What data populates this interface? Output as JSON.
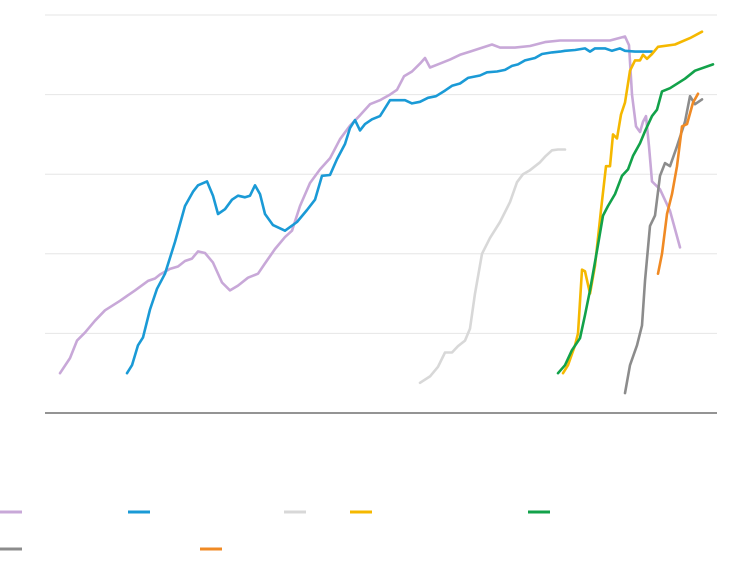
{
  "chart_data": {
    "type": "line",
    "xlim": [
      0,
      672
    ],
    "ylim": [
      0,
      5
    ],
    "yticks": [
      0,
      1,
      2,
      3,
      4,
      5
    ],
    "grid": true,
    "series": [
      {
        "color": "#c8a8d8",
        "x": [
          15,
          25,
          32,
          40,
          50,
          60,
          75,
          90,
          103,
          110,
          115,
          125,
          133,
          140,
          147,
          153,
          160,
          168,
          177,
          185,
          193,
          203,
          213,
          220,
          230,
          240,
          247,
          255,
          265,
          275,
          285,
          295,
          305,
          315,
          325,
          335,
          345,
          352,
          359,
          367,
          375,
          380,
          385,
          395,
          405,
          415,
          425,
          435,
          447,
          455,
          470,
          485,
          500,
          515,
          530,
          545,
          565,
          580,
          584,
          587,
          591,
          595,
          598,
          601,
          604,
          607,
          615,
          625,
          635
        ],
        "values": [
          0.5,
          0.69,
          0.91,
          1.01,
          1.16,
          1.29,
          1.41,
          1.54,
          1.66,
          1.69,
          1.74,
          1.81,
          1.84,
          1.91,
          1.94,
          2.03,
          2.01,
          1.89,
          1.64,
          1.54,
          1.6,
          1.7,
          1.75,
          1.88,
          2.06,
          2.21,
          2.29,
          2.6,
          2.89,
          3.06,
          3.2,
          3.44,
          3.61,
          3.74,
          3.88,
          3.93,
          4.0,
          4.06,
          4.23,
          4.29,
          4.39,
          4.46,
          4.34,
          4.39,
          4.44,
          4.5,
          4.54,
          4.58,
          4.63,
          4.59,
          4.59,
          4.61,
          4.66,
          4.68,
          4.68,
          4.68,
          4.68,
          4.73,
          4.62,
          4.0,
          3.6,
          3.53,
          3.66,
          3.73,
          3.35,
          2.91,
          2.81,
          2.54,
          2.08
        ]
      },
      {
        "color": "#1a9ad6",
        "x": [
          82,
          87,
          93,
          98,
          105,
          112,
          120,
          130,
          140,
          148,
          153,
          162,
          168,
          173,
          180,
          187,
          193,
          200,
          205,
          210,
          215,
          220,
          228,
          240,
          252,
          262,
          270,
          277,
          285,
          292,
          300,
          305,
          310,
          315,
          320,
          327,
          335,
          345,
          360,
          367,
          375,
          383,
          391,
          400,
          407,
          415,
          423,
          435,
          442,
          452,
          460,
          467,
          473,
          480,
          490,
          497,
          507,
          515,
          520,
          530,
          540,
          545,
          550,
          560,
          567,
          575,
          580,
          590,
          607
        ],
        "values": [
          0.5,
          0.6,
          0.85,
          0.95,
          1.3,
          1.56,
          1.75,
          2.15,
          2.6,
          2.78,
          2.86,
          2.91,
          2.73,
          2.5,
          2.56,
          2.68,
          2.73,
          2.71,
          2.73,
          2.86,
          2.75,
          2.5,
          2.36,
          2.29,
          2.4,
          2.55,
          2.68,
          2.98,
          2.99,
          3.19,
          3.38,
          3.58,
          3.68,
          3.55,
          3.63,
          3.69,
          3.73,
          3.93,
          3.93,
          3.89,
          3.91,
          3.96,
          3.98,
          4.05,
          4.11,
          4.14,
          4.21,
          4.24,
          4.28,
          4.29,
          4.31,
          4.36,
          4.38,
          4.43,
          4.46,
          4.51,
          4.53,
          4.54,
          4.55,
          4.56,
          4.58,
          4.54,
          4.58,
          4.58,
          4.55,
          4.58,
          4.55,
          4.54,
          4.54
        ]
      },
      {
        "color": "#d8d8d8",
        "x": [
          375,
          385,
          393,
          400,
          407,
          413,
          420,
          425,
          430,
          437,
          445,
          455,
          465,
          472,
          478,
          485,
          495,
          500,
          507,
          513,
          520
        ],
        "values": [
          0.38,
          0.46,
          0.58,
          0.76,
          0.76,
          0.84,
          0.91,
          1.06,
          1.5,
          2.0,
          2.2,
          2.4,
          2.65,
          2.9,
          3.0,
          3.05,
          3.15,
          3.22,
          3.3,
          3.31,
          3.31
        ]
      },
      {
        "color": "#f5b800",
        "x": [
          518,
          523,
          530,
          533,
          537,
          540,
          545,
          550,
          556,
          561,
          565,
          568,
          572,
          576,
          580,
          585,
          590,
          595,
          598,
          602,
          607,
          613,
          630,
          645,
          657
        ],
        "values": [
          0.5,
          0.6,
          0.85,
          1.0,
          1.8,
          1.78,
          1.5,
          1.85,
          2.55,
          3.1,
          3.1,
          3.5,
          3.45,
          3.75,
          3.9,
          4.3,
          4.43,
          4.43,
          4.5,
          4.45,
          4.51,
          4.6,
          4.63,
          4.71,
          4.79
        ]
      },
      {
        "color": "#12a24a",
        "x": [
          513,
          520,
          527,
          535,
          540,
          545,
          552,
          558,
          563,
          570,
          577,
          583,
          588,
          595,
          600,
          607,
          612,
          617,
          625,
          640,
          650,
          668
        ],
        "values": [
          0.5,
          0.6,
          0.79,
          0.94,
          1.23,
          1.54,
          2.04,
          2.48,
          2.6,
          2.75,
          2.98,
          3.06,
          3.23,
          3.39,
          3.54,
          3.73,
          3.81,
          4.04,
          4.08,
          4.2,
          4.3,
          4.38
        ]
      },
      {
        "color": "#8c8c8c",
        "x": [
          580,
          585,
          592,
          597,
          600,
          605,
          610,
          615,
          620,
          625,
          632,
          640,
          645,
          650,
          657
        ],
        "values": [
          0.25,
          0.6,
          0.85,
          1.1,
          1.66,
          2.35,
          2.48,
          2.98,
          3.14,
          3.1,
          3.35,
          3.66,
          3.98,
          3.88,
          3.94
        ]
      },
      {
        "color": "#f08a24",
        "x": [
          613,
          617,
          622,
          627,
          632,
          637,
          642,
          648,
          653
        ],
        "values": [
          1.75,
          2.0,
          2.5,
          2.75,
          3.1,
          3.6,
          3.63,
          3.9,
          4.01
        ]
      }
    ]
  }
}
